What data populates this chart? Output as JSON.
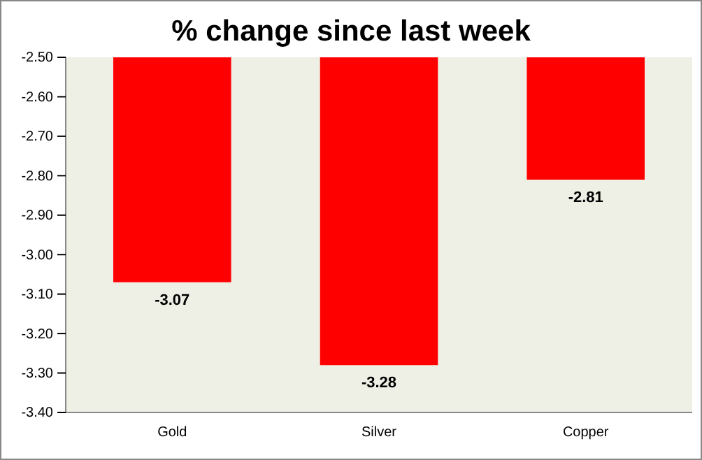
{
  "chart_data": {
    "type": "bar",
    "title": "% change since last week",
    "categories": [
      "Gold",
      "Silver",
      "Copper"
    ],
    "values": [
      -3.07,
      -3.28,
      -2.81
    ],
    "color": "#ff0000",
    "ylim": [
      -3.4,
      -2.5
    ],
    "yticks": [
      {
        "value": -3.4,
        "label": "-3.40"
      },
      {
        "value": -3.3,
        "label": "-3.30"
      },
      {
        "value": -3.2,
        "label": "-3.20"
      },
      {
        "value": -3.1,
        "label": "-3.10"
      },
      {
        "value": -3.0,
        "label": "-3.00"
      },
      {
        "value": -2.9,
        "label": "-2.90"
      },
      {
        "value": -2.8,
        "label": "-2.80"
      },
      {
        "value": -2.7,
        "label": "-2.70"
      },
      {
        "value": -2.6,
        "label": "-2.60"
      },
      {
        "value": -2.5,
        "label": "-2.50"
      }
    ],
    "data_labels": true
  }
}
